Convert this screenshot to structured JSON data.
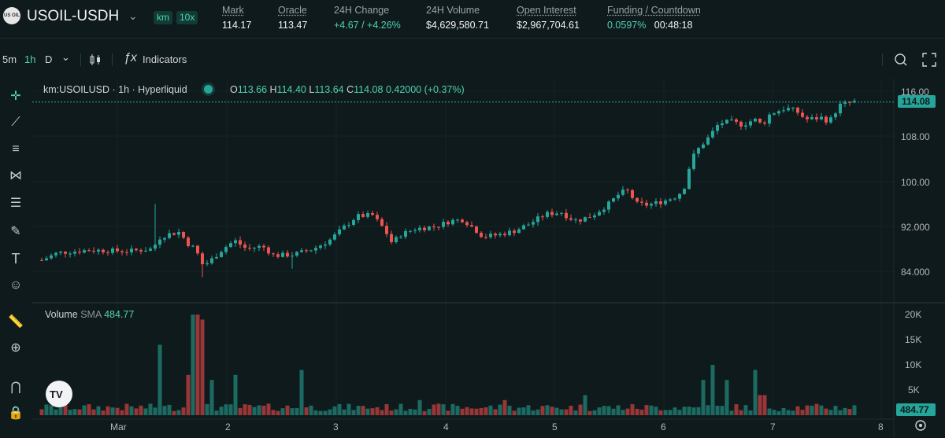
{
  "header": {
    "logo_text": "US OIL",
    "symbol": "USOIL-USDH",
    "badge_km": "km",
    "badge_lev": "10x",
    "stats": [
      {
        "label": "Mark",
        "value": "114.17",
        "underline": true,
        "green": false
      },
      {
        "label": "Oracle",
        "value": "113.47",
        "underline": true,
        "green": false
      },
      {
        "label": "24H Change",
        "value": "+4.67 / +4.26%",
        "underline": false,
        "green": true
      },
      {
        "label": "24H Volume",
        "value": "$4,629,580.71",
        "underline": false,
        "green": false
      },
      {
        "label": "Open Interest",
        "value": "$2,967,704.61",
        "underline": true,
        "green": false
      },
      {
        "label": "Funding / Countdown",
        "value": "0.0597%",
        "value2": "00:48:18",
        "underline": true,
        "green": true
      }
    ]
  },
  "toolbar": {
    "tf_5m": "5m",
    "tf_1h": "1h",
    "tf_d": "D",
    "indicators": "Indicators"
  },
  "legend": {
    "title": "km:USOILUSD · 1h · Hyperliquid",
    "o_k": "O",
    "o": "113.66",
    "h_k": "H",
    "h": "114.40",
    "l_k": "L",
    "l": "113.64",
    "c_k": "C",
    "c": "114.08",
    "chg": "0.42000 (+0.37%)"
  },
  "volume_legend": {
    "name": "Volume",
    "sma": "SMA",
    "value": "484.77"
  },
  "colors": {
    "up": "#26a69a",
    "down": "#ef5350",
    "accent": "#4fd1b3",
    "bg": "#0f1a1c"
  },
  "chart_data": {
    "type": "candlestick",
    "price_axis": {
      "ticks": [
        "116.00",
        "108.00",
        "100.00",
        "92.000",
        "84.000"
      ],
      "values": [
        116,
        108,
        100,
        92,
        84
      ]
    },
    "last_price": "114.08",
    "volume_axis": {
      "ticks": [
        "20K",
        "15K",
        "10K",
        "5K"
      ],
      "values": [
        20000,
        15000,
        10000,
        5000
      ]
    },
    "volume_last": "484.77",
    "x_ticks": [
      "Mar",
      "2",
      "3",
      "4",
      "5",
      "6",
      "7",
      "8"
    ]
  }
}
